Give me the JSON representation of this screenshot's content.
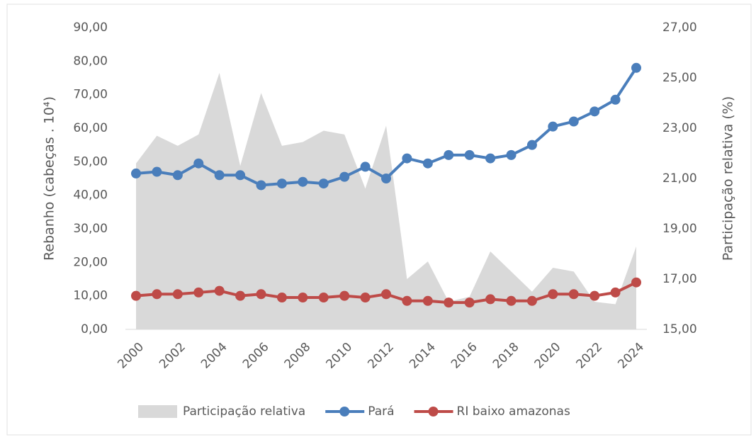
{
  "chart_data": {
    "type": "line",
    "categories": [
      "2000",
      null,
      "2002",
      null,
      "2004",
      null,
      "2006",
      null,
      "2008",
      null,
      "2010",
      null,
      "2012",
      null,
      "2014",
      null,
      "2016",
      null,
      "2018",
      null,
      "2020",
      null,
      "2022",
      null,
      "2024"
    ],
    "ylabel": "Rebanho (cabeças . 10⁴)",
    "y2label": "Participação relativa (%)",
    "ylim": [
      0,
      90
    ],
    "yticks": [
      {
        "value": 0,
        "label": "0,00"
      },
      {
        "value": 10,
        "label": "10,00"
      },
      {
        "value": 20,
        "label": "20,00"
      },
      {
        "value": 30,
        "label": "30,00"
      },
      {
        "value": 40,
        "label": "40,00"
      },
      {
        "value": 50,
        "label": "50,00"
      },
      {
        "value": 60,
        "label": "60,00"
      },
      {
        "value": 70,
        "label": "70,00"
      },
      {
        "value": 80,
        "label": "80,00"
      },
      {
        "value": 90,
        "label": "90,00"
      }
    ],
    "y2lim": [
      15,
      27
    ],
    "y2ticks": [
      {
        "value": 15,
        "label": "15,00"
      },
      {
        "value": 17,
        "label": "17,00"
      },
      {
        "value": 19,
        "label": "19,00"
      },
      {
        "value": 21,
        "label": "21,00"
      },
      {
        "value": 23,
        "label": "23,00"
      },
      {
        "value": 25,
        "label": "25,00"
      },
      {
        "value": 27,
        "label": "27,00"
      }
    ],
    "legend": "bottom",
    "series": [
      {
        "name": "Participação relativa",
        "color": "#d9d9d9",
        "kind": "area",
        "axis": "y2",
        "values": [
          21.6,
          22.7,
          22.3,
          22.75,
          25.2,
          21.5,
          24.4,
          22.3,
          22.45,
          22.9,
          22.75,
          20.6,
          23.1,
          17.0,
          17.7,
          16.1,
          16.3,
          18.1,
          17.3,
          16.5,
          17.45,
          17.3,
          16.1,
          16.0,
          18.3
        ]
      },
      {
        "name": "Pará",
        "color": "#4a7ebb",
        "kind": "line",
        "values": [
          46.5,
          47,
          46,
          49.5,
          46,
          46,
          43,
          43.5,
          44,
          43.5,
          45.5,
          48.5,
          45,
          51,
          49.5,
          52,
          52,
          51,
          52,
          55,
          60.5,
          62,
          65,
          68.5,
          78
        ]
      },
      {
        "name": "RI baixo amazonas",
        "color": "#be4b48",
        "kind": "line",
        "values": [
          10,
          10.5,
          10.5,
          11,
          11.5,
          10,
          10.5,
          9.5,
          9.5,
          9.5,
          10,
          9.5,
          10.5,
          8.5,
          8.5,
          8,
          8,
          9,
          8.5,
          8.5,
          10.5,
          10.5,
          10,
          11,
          14
        ]
      }
    ]
  }
}
